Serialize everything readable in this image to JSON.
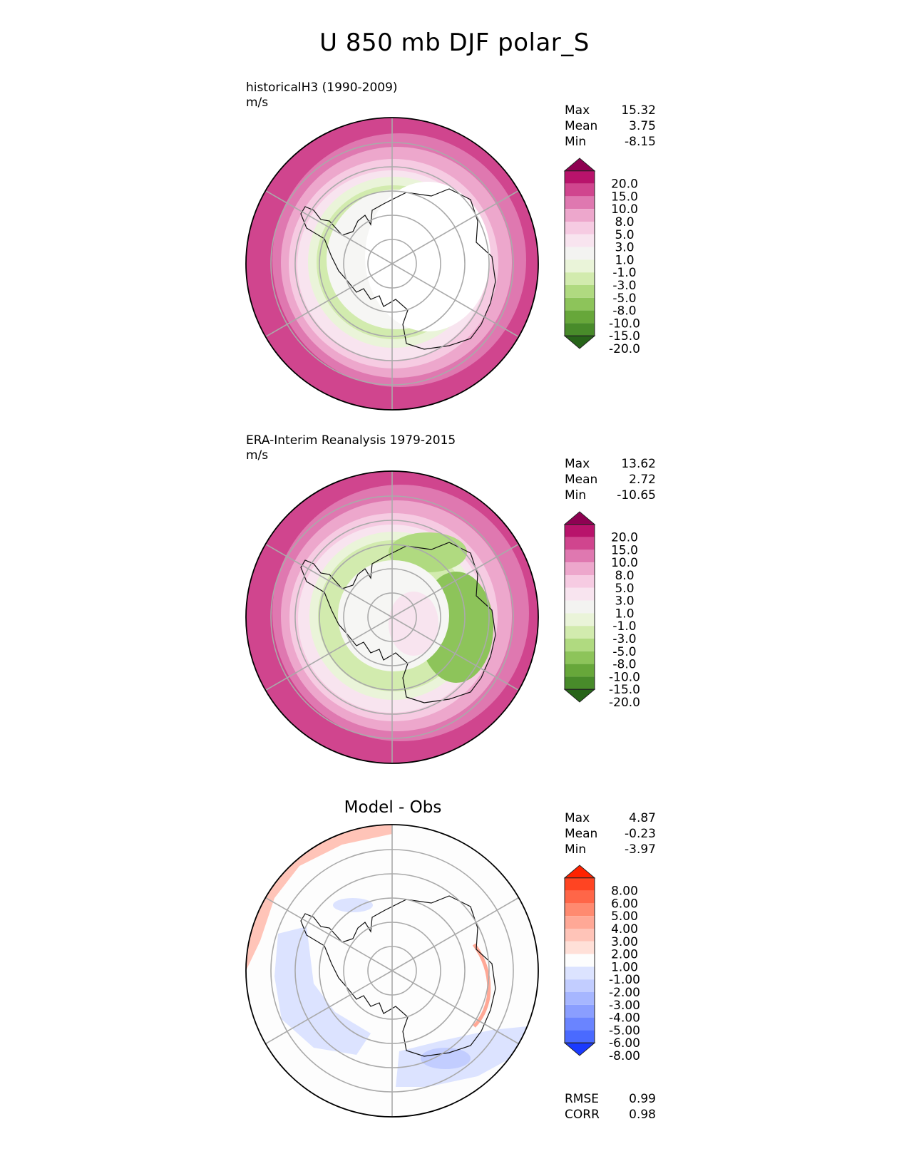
{
  "title": "U 850 mb DJF polar_S",
  "panels": [
    {
      "id": "model",
      "title": "historicalH3 (1990-2009)",
      "units": "m/s",
      "stats": [
        {
          "label": "Max",
          "value": "15.32"
        },
        {
          "label": "Mean",
          "value": "3.75"
        },
        {
          "label": "Min",
          "value": "-8.15"
        }
      ]
    },
    {
      "id": "obs",
      "title": "ERA-Interim Reanalysis 1979-2015",
      "units": "m/s",
      "stats": [
        {
          "label": "Max",
          "value": "13.62"
        },
        {
          "label": "Mean",
          "value": "2.72"
        },
        {
          "label": "Min",
          "value": "-10.65"
        }
      ]
    },
    {
      "id": "diff",
      "title": "Model - Obs",
      "stats": [
        {
          "label": "Max",
          "value": "4.87"
        },
        {
          "label": "Mean",
          "value": "-0.23"
        },
        {
          "label": "Min",
          "value": "-3.97"
        }
      ],
      "metrics": [
        {
          "label": "RMSE",
          "value": "0.99"
        },
        {
          "label": "CORR",
          "value": "0.98"
        }
      ]
    }
  ],
  "colorbars": {
    "field": {
      "labels": [
        "20.0",
        "15.0",
        "10.0",
        "8.0",
        "5.0",
        "3.0",
        "1.0",
        "-1.0",
        "-3.0",
        "-5.0",
        "-8.0",
        "-10.0",
        "-15.0",
        "-20.0"
      ],
      "colors": [
        "#8e0152",
        "#b8136b",
        "#d0458e",
        "#df78b0",
        "#eda7cc",
        "#f6cbe2",
        "#f8e4ef",
        "#f3f3f1",
        "#eaf4d9",
        "#d2ebae",
        "#b0da80",
        "#8dc45a",
        "#67a73a",
        "#488b2a",
        "#276419"
      ]
    },
    "diff": {
      "labels": [
        "8.00",
        "6.00",
        "5.00",
        "4.00",
        "3.00",
        "2.00",
        "1.00",
        "-1.00",
        "-2.00",
        "-3.00",
        "-4.00",
        "-5.00",
        "-6.00",
        "-8.00"
      ],
      "colors": [
        "#ff2200",
        "#ff4422",
        "#ff6648",
        "#ff8a70",
        "#ffa896",
        "#ffc4b8",
        "#ffe0d8",
        "#fdfdfd",
        "#dce3ff",
        "#c2cdff",
        "#a6b6ff",
        "#8a9eff",
        "#6a84ff",
        "#4a6aff",
        "#1a3aff"
      ]
    }
  }
}
